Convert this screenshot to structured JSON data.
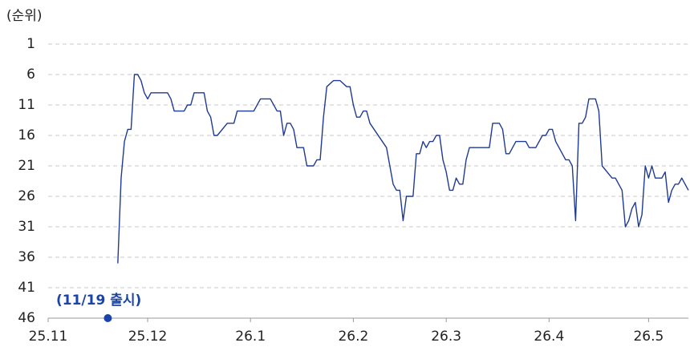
{
  "chart_data": {
    "type": "line",
    "ylabel": "(순위)",
    "ylim": [
      46,
      1
    ],
    "yticks": [
      1,
      6,
      11,
      16,
      21,
      26,
      31,
      36,
      41,
      46
    ],
    "xlim": [
      0,
      193
    ],
    "xticks": [
      {
        "value": 0,
        "label": "25.11"
      },
      {
        "value": 30,
        "label": "25.12"
      },
      {
        "value": 61,
        "label": "26.1"
      },
      {
        "value": 92,
        "label": "26.2"
      },
      {
        "value": 120,
        "label": "26.3"
      },
      {
        "value": 151,
        "label": "26.4"
      },
      {
        "value": 181,
        "label": "26.5"
      }
    ],
    "grid": true,
    "x": [
      21,
      22,
      23,
      24,
      25,
      26,
      27,
      28,
      29,
      30,
      31,
      34,
      36,
      37,
      38,
      41,
      42,
      43,
      44,
      47,
      48,
      49,
      50,
      51,
      54,
      56,
      57,
      62,
      64,
      67,
      69,
      70,
      71,
      72,
      73,
      74,
      75,
      77,
      78,
      80,
      81,
      82,
      83,
      84,
      86,
      88,
      90,
      91,
      92,
      93,
      94,
      95,
      96,
      97,
      102,
      104,
      105,
      106,
      107,
      108,
      110,
      111,
      112,
      113,
      114,
      115,
      116,
      117,
      118,
      119,
      120,
      121,
      122,
      123,
      124,
      125,
      126,
      127,
      133,
      134,
      136,
      137,
      138,
      139,
      141,
      144,
      145,
      147,
      149,
      150,
      151,
      152,
      153,
      156,
      157,
      158,
      159,
      160,
      161,
      162,
      163,
      165,
      166,
      167,
      170,
      171,
      173,
      174,
      175,
      176,
      177,
      178,
      179,
      180,
      181,
      182,
      183,
      185,
      186,
      187,
      188,
      189,
      190,
      191,
      193
    ],
    "series": [
      {
        "color": "#1f3a93",
        "values": [
          37,
          23,
          17,
          15,
          15,
          6,
          6,
          7,
          9,
          10,
          9,
          9,
          9,
          10,
          12,
          12,
          11,
          11,
          9,
          9,
          12,
          13,
          16,
          16,
          14,
          14,
          12,
          12,
          10,
          10,
          12,
          12,
          16,
          14,
          14,
          15,
          18,
          18,
          21,
          21,
          20,
          20,
          13,
          8,
          7,
          7,
          8,
          8,
          11,
          13,
          13,
          12,
          12,
          14,
          18,
          24,
          25,
          25,
          30,
          26,
          26,
          19,
          19,
          17,
          18,
          17,
          17,
          16,
          16,
          20,
          22,
          25,
          25,
          23,
          24,
          24,
          20,
          18,
          18,
          14,
          14,
          15,
          19,
          19,
          17,
          17,
          18,
          18,
          16,
          16,
          15,
          15,
          17,
          20,
          20,
          21,
          30,
          14,
          14,
          13,
          10,
          10,
          12,
          21,
          23,
          23,
          25,
          31,
          30,
          28,
          27,
          31,
          29,
          21,
          23,
          21,
          23,
          23,
          22,
          27,
          25,
          24,
          24,
          23,
          25
        ]
      }
    ],
    "annotation": {
      "text": "(11/19 출시)",
      "x": 18,
      "y": 46,
      "color": "#1a44a6"
    }
  }
}
